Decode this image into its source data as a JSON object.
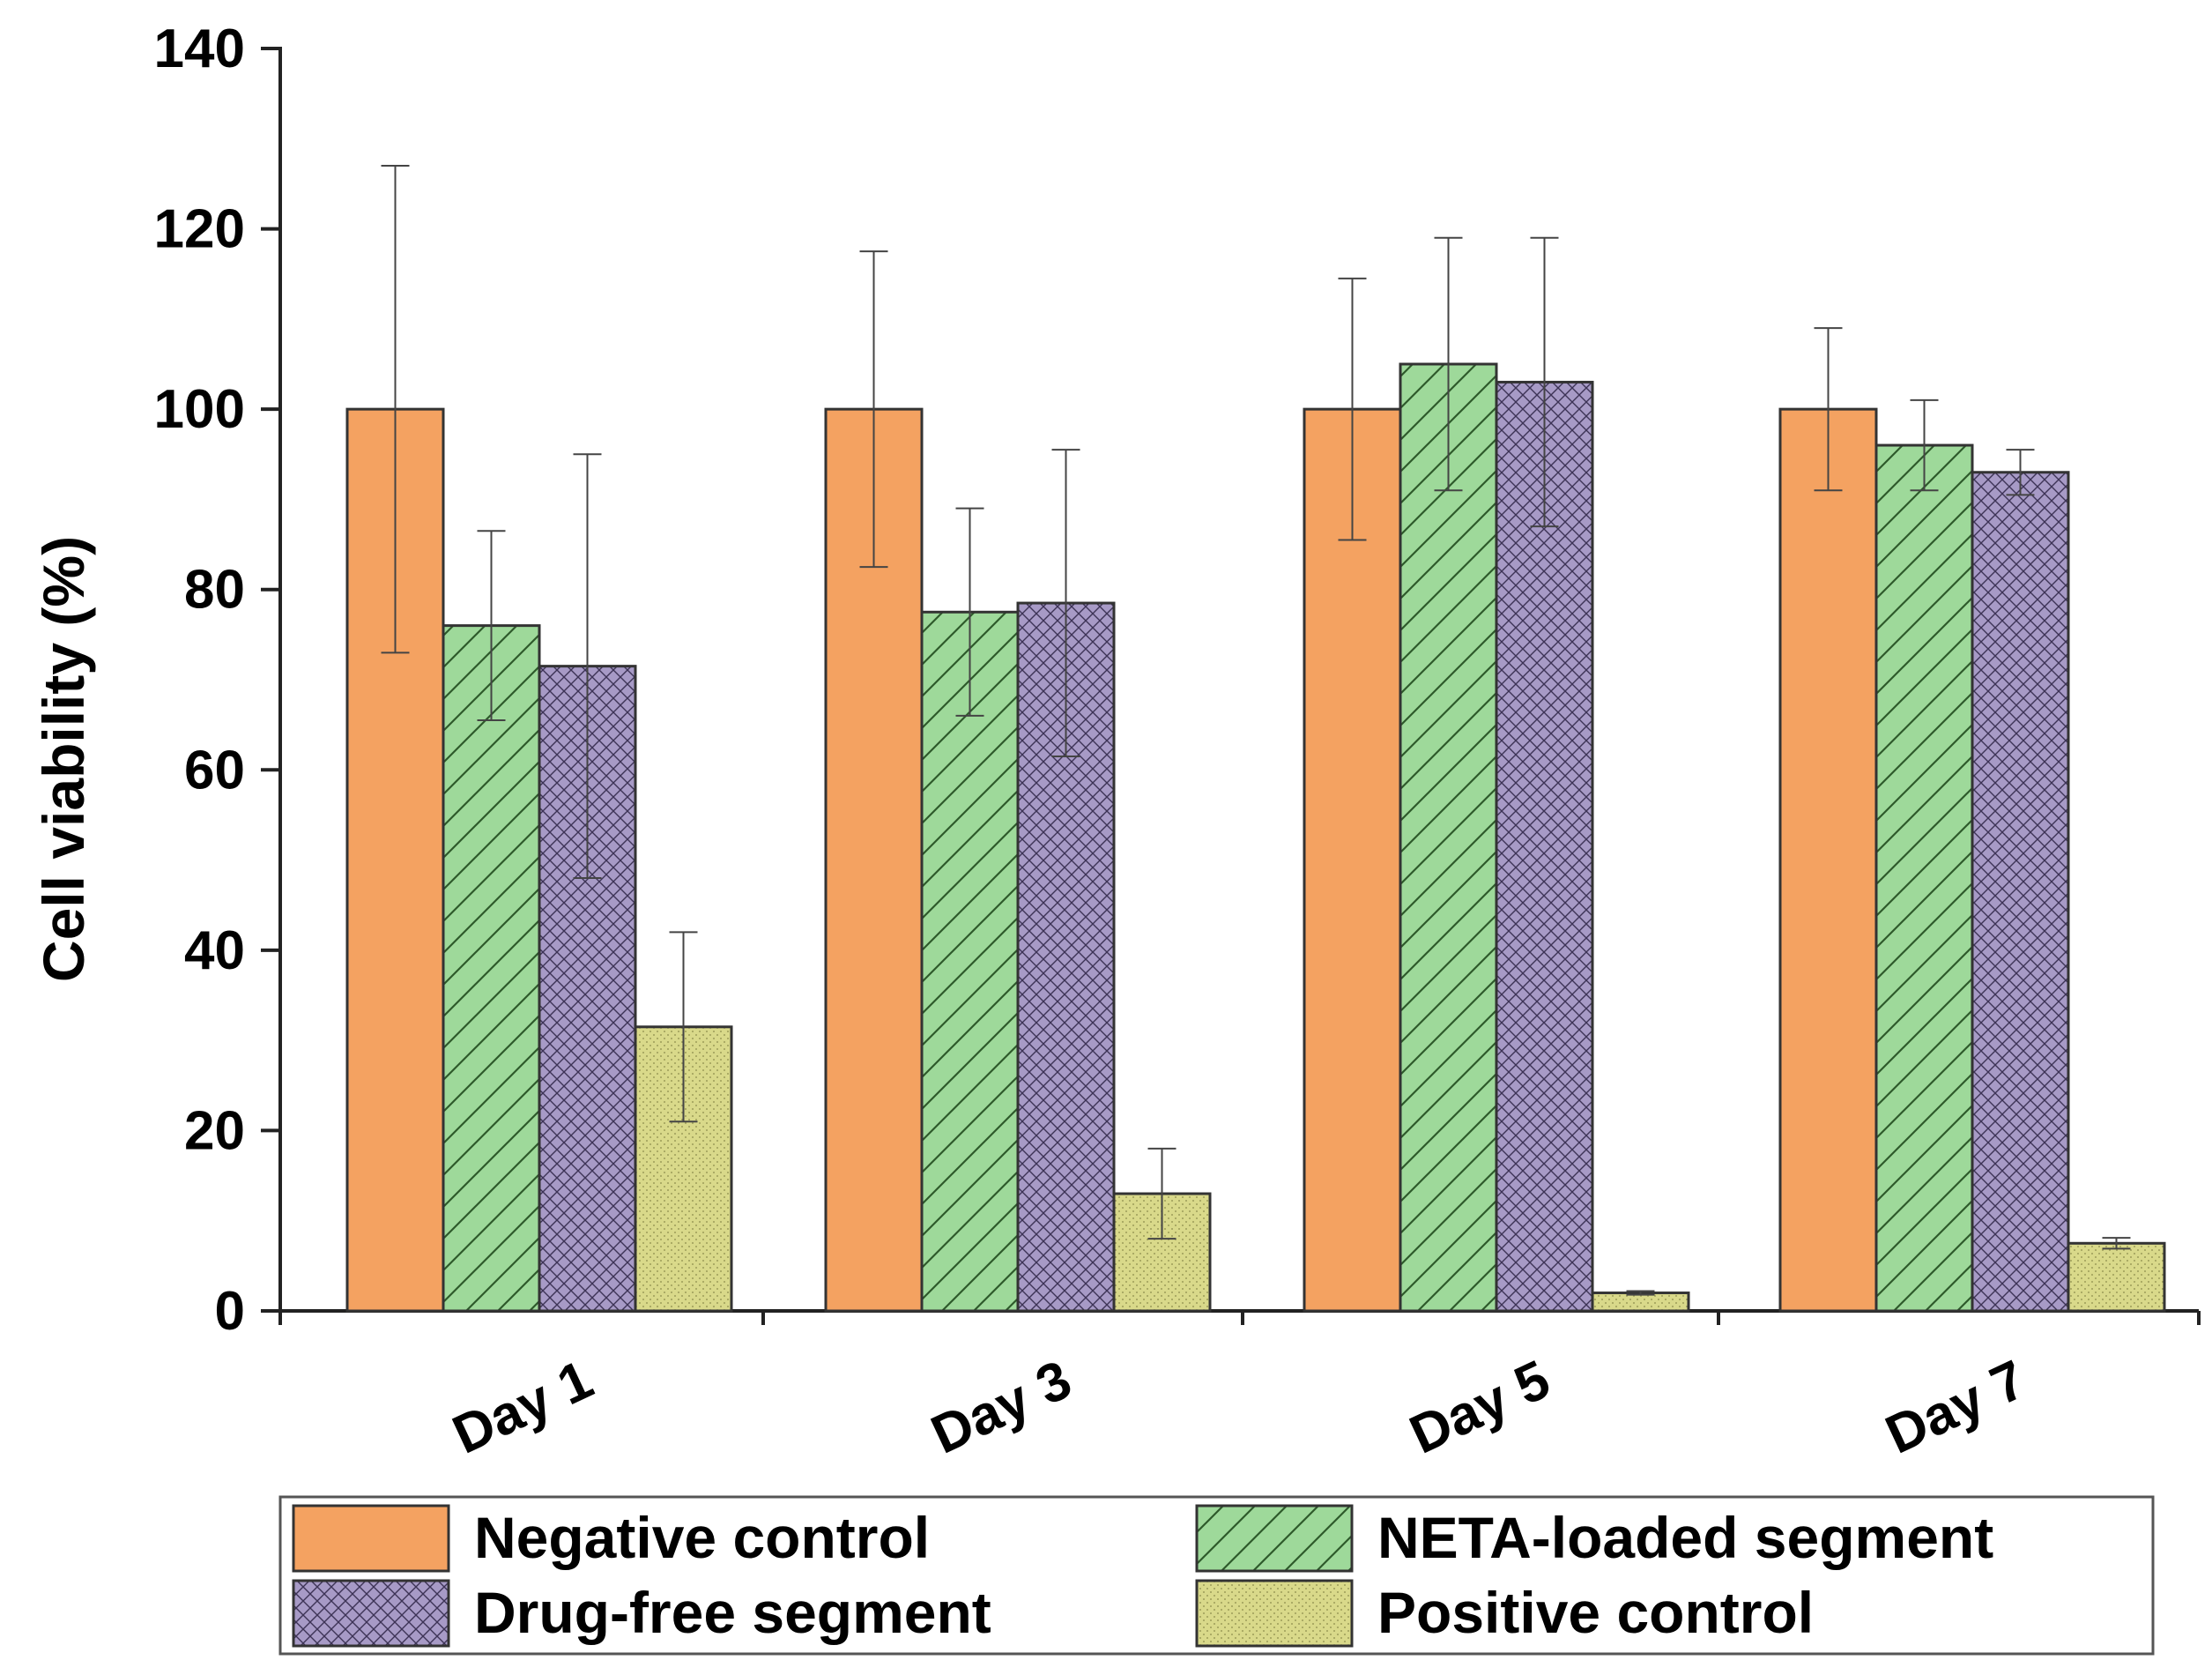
{
  "chart_data": {
    "type": "bar",
    "title": "",
    "xlabel": "",
    "ylabel": "Cell viability (%)",
    "ylim": [
      0,
      140
    ],
    "yticks": [
      0,
      20,
      40,
      60,
      80,
      100,
      120,
      140
    ],
    "ytick_labels": [
      "0",
      "20",
      "40",
      "60",
      "80",
      "100",
      "120",
      "140"
    ],
    "categories": [
      "Day 1",
      "Day 3",
      "Day 5",
      "Day 7"
    ],
    "grid": false,
    "legend_position": "bottom",
    "series": [
      {
        "name": "Negative control",
        "key": "negative",
        "color": "#F4A261",
        "pattern": "solid",
        "values": [
          100,
          100,
          100,
          100
        ],
        "errors": [
          27,
          17.5,
          14.5,
          9
        ]
      },
      {
        "name": "NETA-loaded segment",
        "key": "neta",
        "color": "#9ED99A",
        "pattern": "diagonal",
        "values": [
          76,
          77.5,
          105,
          96
        ],
        "errors": [
          10.5,
          11.5,
          14,
          5
        ]
      },
      {
        "name": "Drug-free segment",
        "key": "drugfree",
        "color": "#A79AC6",
        "pattern": "crosshatch",
        "values": [
          71.5,
          78.5,
          103,
          93
        ],
        "errors": [
          23.5,
          17,
          16,
          2.5
        ]
      },
      {
        "name": "Positive control",
        "key": "positive",
        "color": "#D9D98A",
        "pattern": "dots",
        "values": [
          31.5,
          13,
          2,
          7.5
        ],
        "errors": [
          10.5,
          5,
          0.2,
          0.6
        ]
      }
    ]
  }
}
